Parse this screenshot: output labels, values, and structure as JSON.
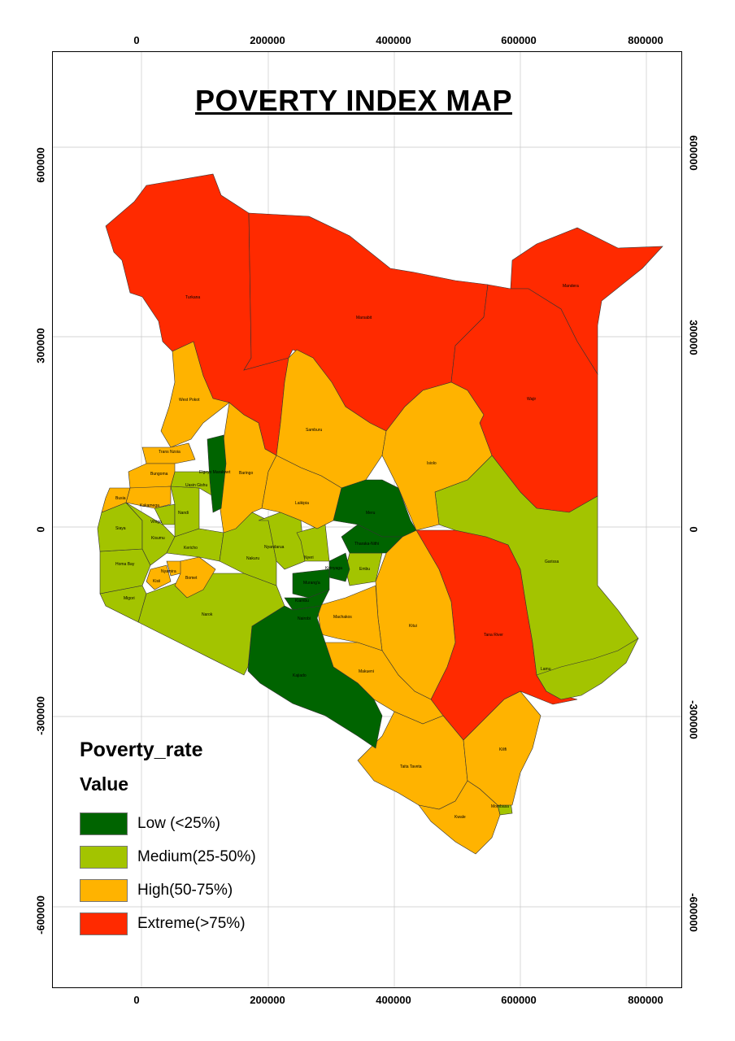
{
  "title": "POVERTY INDEX MAP",
  "axes": {
    "x_ticks": [
      "0",
      "200000",
      "400000",
      "600000",
      "800000"
    ],
    "y_ticks": [
      "600000",
      "300000",
      "0",
      "-300000",
      "-600000"
    ]
  },
  "colors": {
    "low": "#006400",
    "medium": "#a3c400",
    "high": "#ffb300",
    "extreme": "#ff2a00"
  },
  "legend": {
    "title": "Poverty_rate",
    "subtitle": "Value",
    "items": [
      {
        "label": "Low (<25%)",
        "color": "#006400"
      },
      {
        "label": "Medium(25-50%)",
        "color": "#a3c400"
      },
      {
        "label": "High(50-75%)",
        "color": "#ffb300"
      },
      {
        "label": "Extreme(>75%)",
        "color": "#ff2a00"
      }
    ]
  },
  "counties": [
    {
      "name": "Turkana",
      "class": "extreme"
    },
    {
      "name": "Marsabit",
      "class": "extreme"
    },
    {
      "name": "Mandera",
      "class": "extreme"
    },
    {
      "name": "Wajir",
      "class": "extreme"
    },
    {
      "name": "Tana River",
      "class": "extreme"
    },
    {
      "name": "West Pokot",
      "class": "high"
    },
    {
      "name": "Samburu",
      "class": "high"
    },
    {
      "name": "Isiolo",
      "class": "high"
    },
    {
      "name": "Baringo",
      "class": "high"
    },
    {
      "name": "Laikipia",
      "class": "high"
    },
    {
      "name": "Trans Nzoia",
      "class": "high"
    },
    {
      "name": "Bungoma",
      "class": "high"
    },
    {
      "name": "Busia",
      "class": "high"
    },
    {
      "name": "Kakamega",
      "class": "high"
    },
    {
      "name": "Kisii",
      "class": "high"
    },
    {
      "name": "Nyamira",
      "class": "high"
    },
    {
      "name": "Bomet",
      "class": "high"
    },
    {
      "name": "Kitui",
      "class": "high"
    },
    {
      "name": "Machakos",
      "class": "high"
    },
    {
      "name": "Makueni",
      "class": "high"
    },
    {
      "name": "Taita Taveta",
      "class": "high"
    },
    {
      "name": "Kilifi",
      "class": "high"
    },
    {
      "name": "Kwale",
      "class": "high"
    },
    {
      "name": "Elgeyo Marakwet",
      "class": "low"
    },
    {
      "name": "Meru",
      "class": "low"
    },
    {
      "name": "Tharaka-Nithi",
      "class": "low"
    },
    {
      "name": "Kirinyaga",
      "class": "low"
    },
    {
      "name": "Murang'a",
      "class": "low"
    },
    {
      "name": "Kiambu",
      "class": "low"
    },
    {
      "name": "Nairobi",
      "class": "low"
    },
    {
      "name": "Kajiado",
      "class": "low"
    },
    {
      "name": "Uasin Gishu",
      "class": "medium"
    },
    {
      "name": "Nandi",
      "class": "medium"
    },
    {
      "name": "Vihiga",
      "class": "medium"
    },
    {
      "name": "Siaya",
      "class": "medium"
    },
    {
      "name": "Kisumu",
      "class": "medium"
    },
    {
      "name": "Kericho",
      "class": "medium"
    },
    {
      "name": "Homa Bay",
      "class": "medium"
    },
    {
      "name": "Migori",
      "class": "medium"
    },
    {
      "name": "Narok",
      "class": "medium"
    },
    {
      "name": "Nakuru",
      "class": "medium"
    },
    {
      "name": "Nyandarua",
      "class": "medium"
    },
    {
      "name": "Nyeri",
      "class": "medium"
    },
    {
      "name": "Embu",
      "class": "medium"
    },
    {
      "name": "Garissa",
      "class": "medium"
    },
    {
      "name": "Lamu",
      "class": "medium"
    },
    {
      "name": "Mombasa",
      "class": "medium"
    }
  ]
}
